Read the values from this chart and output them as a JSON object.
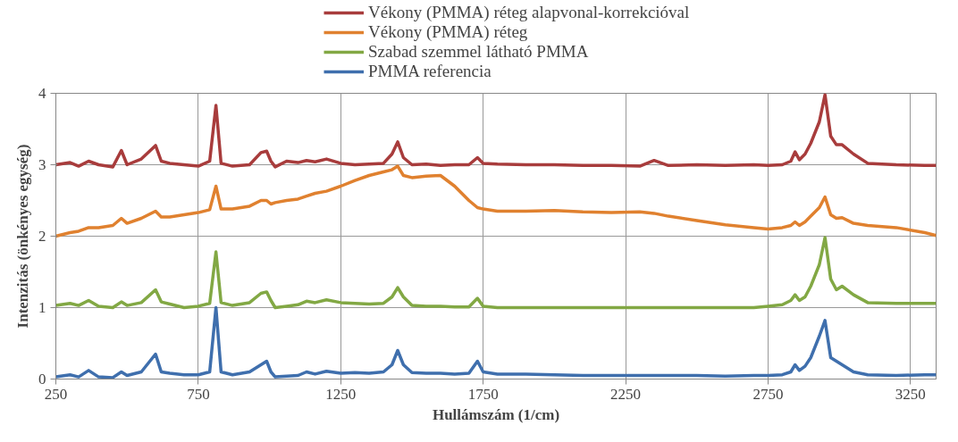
{
  "chart_data": {
    "type": "line",
    "xlabel": "Hullámszám (1/cm)",
    "ylabel": "Intenzitás (önkényes egység)",
    "x": [
      250,
      300,
      330,
      365,
      400,
      450,
      480,
      500,
      550,
      600,
      620,
      650,
      700,
      750,
      790,
      812,
      830,
      870,
      930,
      970,
      990,
      1005,
      1020,
      1060,
      1100,
      1130,
      1160,
      1200,
      1250,
      1300,
      1350,
      1400,
      1430,
      1450,
      1470,
      1500,
      1550,
      1600,
      1650,
      1700,
      1730,
      1750,
      1800,
      1900,
      2000,
      2100,
      2200,
      2300,
      2350,
      2400,
      2500,
      2600,
      2700,
      2750,
      2800,
      2830,
      2845,
      2860,
      2880,
      2900,
      2930,
      2950,
      2970,
      2990,
      3010,
      3050,
      3100,
      3200,
      3300,
      3340
    ],
    "series": [
      {
        "name": "Vékony (PMMA) réteg alapvonal-korrekcióval",
        "color": "#a83c3c",
        "values": [
          3.0,
          3.03,
          2.98,
          3.05,
          3.0,
          2.97,
          3.2,
          3.0,
          3.08,
          3.27,
          3.05,
          3.02,
          3.0,
          2.98,
          3.05,
          3.83,
          3.02,
          2.98,
          3.0,
          3.17,
          3.19,
          3.05,
          2.97,
          3.05,
          3.03,
          3.06,
          3.04,
          3.08,
          3.02,
          3.0,
          3.01,
          3.02,
          3.15,
          3.32,
          3.1,
          3.0,
          3.01,
          2.99,
          3.0,
          3.0,
          3.1,
          3.02,
          3.01,
          3.0,
          3.0,
          2.99,
          2.99,
          2.98,
          3.06,
          2.99,
          3.0,
          2.99,
          3.0,
          2.99,
          3.0,
          3.05,
          3.18,
          3.07,
          3.15,
          3.3,
          3.6,
          3.98,
          3.4,
          3.28,
          3.28,
          3.15,
          3.02,
          3.0,
          2.99,
          2.99
        ]
      },
      {
        "name": "Vékony (PMMA) réteg",
        "color": "#e0812f",
        "values": [
          2.0,
          2.05,
          2.07,
          2.12,
          2.12,
          2.15,
          2.25,
          2.18,
          2.25,
          2.35,
          2.27,
          2.27,
          2.3,
          2.33,
          2.37,
          2.7,
          2.38,
          2.38,
          2.42,
          2.5,
          2.5,
          2.45,
          2.47,
          2.5,
          2.52,
          2.56,
          2.6,
          2.63,
          2.7,
          2.78,
          2.85,
          2.9,
          2.93,
          2.98,
          2.85,
          2.82,
          2.84,
          2.85,
          2.7,
          2.5,
          2.4,
          2.38,
          2.35,
          2.35,
          2.36,
          2.34,
          2.33,
          2.34,
          2.32,
          2.28,
          2.22,
          2.16,
          2.12,
          2.1,
          2.12,
          2.15,
          2.2,
          2.15,
          2.2,
          2.28,
          2.4,
          2.55,
          2.3,
          2.25,
          2.26,
          2.18,
          2.15,
          2.12,
          2.05,
          2.01
        ]
      },
      {
        "name": "Szabad szemmel látható PMMA",
        "color": "#82a844",
        "values": [
          1.03,
          1.06,
          1.03,
          1.1,
          1.02,
          1.0,
          1.08,
          1.03,
          1.07,
          1.25,
          1.08,
          1.05,
          1.0,
          1.02,
          1.06,
          1.78,
          1.07,
          1.03,
          1.07,
          1.2,
          1.22,
          1.1,
          1.0,
          1.02,
          1.04,
          1.09,
          1.07,
          1.11,
          1.07,
          1.06,
          1.05,
          1.06,
          1.15,
          1.28,
          1.15,
          1.03,
          1.02,
          1.02,
          1.01,
          1.01,
          1.13,
          1.02,
          1.0,
          1.0,
          1.0,
          1.0,
          1.0,
          1.0,
          1.0,
          1.0,
          1.0,
          1.0,
          1.0,
          1.02,
          1.04,
          1.1,
          1.18,
          1.1,
          1.15,
          1.3,
          1.6,
          1.98,
          1.4,
          1.25,
          1.3,
          1.18,
          1.07,
          1.06,
          1.06,
          1.06
        ]
      },
      {
        "name": "PMMA referencia",
        "color": "#3f6fad",
        "values": [
          0.03,
          0.06,
          0.03,
          0.12,
          0.03,
          0.02,
          0.1,
          0.05,
          0.1,
          0.35,
          0.1,
          0.08,
          0.06,
          0.06,
          0.1,
          1.0,
          0.1,
          0.06,
          0.1,
          0.2,
          0.25,
          0.1,
          0.03,
          0.04,
          0.05,
          0.1,
          0.07,
          0.11,
          0.08,
          0.09,
          0.08,
          0.1,
          0.2,
          0.4,
          0.2,
          0.09,
          0.08,
          0.08,
          0.07,
          0.08,
          0.25,
          0.1,
          0.07,
          0.07,
          0.06,
          0.05,
          0.05,
          0.05,
          0.05,
          0.05,
          0.05,
          0.04,
          0.05,
          0.05,
          0.06,
          0.1,
          0.2,
          0.12,
          0.18,
          0.3,
          0.6,
          0.82,
          0.3,
          0.25,
          0.2,
          0.1,
          0.06,
          0.05,
          0.06,
          0.06
        ]
      }
    ],
    "xlim": [
      250,
      3340
    ],
    "xticks": [
      250,
      750,
      1250,
      1750,
      2250,
      2750,
      3250
    ],
    "ylim": [
      0,
      4
    ],
    "yticks": [
      0,
      1,
      2,
      3,
      4
    ],
    "grid": true,
    "legend": "top",
    "marker": "none",
    "line_style": "solid"
  }
}
